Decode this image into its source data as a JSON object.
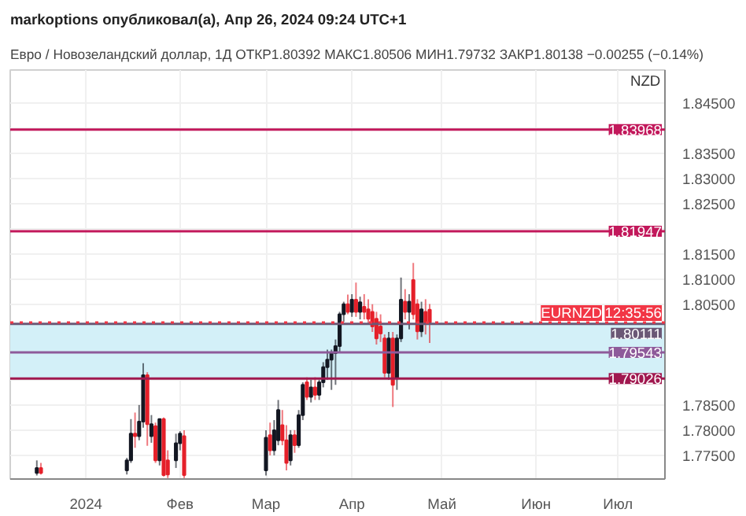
{
  "chart_data": {
    "type": "candlestick",
    "subtitle": "markoptions опубликовал(а), Апр 26, 2024 09:24 UTC+1",
    "title": "Евро / Новозеландский доллар, 1Д  ОТКР1.80392 МАКС1.80506 МИН1.79732 ЗАКР1.80138 −0.00255 (−0.14%)",
    "ylabel": "NZD",
    "categories": [
      null,
      null,
      null,
      null,
      null,
      null,
      null,
      null,
      null,
      null,
      null,
      null,
      null,
      null,
      null,
      null,
      null,
      null,
      "2024",
      null,
      null,
      null,
      null,
      null,
      null,
      null,
      null,
      null,
      null,
      null,
      null,
      null,
      null,
      null,
      null,
      null,
      null,
      null,
      null,
      null,
      null,
      "Фев",
      null,
      null,
      null,
      null,
      null,
      null,
      null,
      null,
      null,
      null,
      null,
      null,
      null,
      null,
      null,
      null,
      null,
      null,
      null,
      null,
      "Мар",
      null,
      null,
      null,
      null,
      null,
      null,
      null,
      null,
      null,
      null,
      null,
      null,
      null,
      null,
      null,
      null,
      null,
      null,
      null,
      null,
      "Апр",
      null,
      null,
      null,
      null,
      null,
      null,
      null,
      null,
      null,
      null,
      null,
      null,
      null,
      null,
      null,
      null,
      null,
      null,
      null,
      null,
      null,
      "Май",
      null,
      null,
      null,
      null,
      null,
      null,
      null,
      null,
      null,
      null,
      null,
      null,
      null,
      null,
      null,
      null,
      null,
      null,
      null,
      null,
      null,
      null,
      "Июн",
      null,
      null,
      null,
      null,
      null,
      null,
      null,
      null,
      null,
      null,
      null,
      null,
      null,
      null,
      null,
      null,
      null,
      null,
      null,
      "Июл",
      null,
      null,
      null,
      null,
      null,
      null,
      null,
      null,
      null,
      null,
      null
    ],
    "ohlc": [
      null,
      null,
      null,
      null,
      null,
      null,
      [
        1.7715,
        1.774,
        1.771,
        1.7725
      ],
      [
        1.7725,
        1.7735,
        1.7712,
        1.7715
      ],
      null,
      null,
      null,
      null,
      null,
      null,
      null,
      null,
      null,
      null,
      null,
      null,
      null,
      null,
      null,
      null,
      null,
      null,
      null,
      null,
      [
        1.772,
        1.7745,
        1.7712,
        1.774
      ],
      [
        1.774,
        1.7822,
        1.7735,
        1.7793
      ],
      [
        1.7793,
        1.7835,
        1.7765,
        1.7788
      ],
      [
        1.7788,
        1.785,
        1.778,
        1.7817
      ],
      [
        1.7817,
        1.7933,
        1.7805,
        1.7909
      ],
      [
        1.7909,
        1.7915,
        1.7769,
        1.7812
      ],
      [
        1.7788,
        1.783,
        1.7775,
        1.7812
      ],
      [
        1.7808,
        1.7815,
        1.7735,
        1.774
      ],
      [
        1.774,
        1.7822,
        1.773,
        1.7822
      ],
      [
        1.7822,
        1.7825,
        1.7708,
        1.7711
      ],
      [
        1.774,
        1.776,
        1.7705,
        1.7712
      ],
      null,
      [
        1.774,
        1.7793,
        1.7725,
        1.7774
      ],
      [
        1.7774,
        1.7798,
        1.776,
        1.7793
      ],
      [
        1.7788,
        1.78,
        1.7705,
        1.7711
      ],
      null,
      null,
      null,
      null,
      null,
      null,
      null,
      null,
      null,
      null,
      null,
      null,
      null,
      null,
      null,
      null,
      null,
      null,
      null,
      [
        1.772,
        1.78,
        1.771,
        1.7785
      ],
      [
        1.779,
        1.7815,
        1.775,
        1.776
      ],
      [
        1.776,
        1.782,
        1.775,
        1.78
      ],
      [
        1.778,
        1.786,
        1.777,
        1.784
      ],
      [
        1.781,
        1.784,
        1.777,
        1.778
      ],
      [
        1.778,
        1.781,
        1.772,
        1.7735
      ],
      [
        1.774,
        1.78,
        1.773,
        1.779
      ],
      [
        1.779,
        1.78,
        1.7755,
        1.777
      ],
      [
        1.777,
        1.784,
        1.7765,
        1.783
      ],
      [
        1.783,
        1.7895,
        1.782,
        1.789
      ],
      [
        1.7895,
        1.7905,
        1.786,
        1.7866
      ],
      [
        1.7866,
        1.79,
        1.7855,
        1.7885
      ],
      [
        1.7885,
        1.7905,
        1.786,
        1.787
      ],
      [
        1.787,
        1.79,
        1.786,
        1.7895
      ],
      [
        1.7895,
        1.7935,
        1.7885,
        1.7925
      ],
      [
        1.7925,
        1.796,
        1.79,
        1.794
      ],
      [
        1.794,
        1.796,
        1.788,
        1.7953
      ],
      [
        1.7953,
        1.798,
        1.789,
        1.7967
      ],
      [
        1.7967,
        1.8035,
        1.7955,
        1.803
      ],
      [
        1.803,
        1.8055,
        1.8015,
        1.805
      ],
      [
        1.805,
        1.8069,
        1.803,
        1.8035
      ],
      [
        1.8035,
        1.807,
        1.8025,
        1.8059
      ],
      [
        1.8059,
        1.8093,
        1.8025,
        1.8035
      ],
      [
        1.8035,
        1.8065,
        1.802,
        1.8054
      ],
      [
        1.8045,
        1.807,
        1.802,
        1.8035
      ],
      [
        1.804,
        1.806,
        1.801,
        1.8021
      ],
      [
        1.8035,
        1.805,
        1.7995,
        1.8006
      ],
      [
        1.8021,
        1.8035,
        1.797,
        1.7982
      ],
      [
        1.8006,
        1.803,
        1.7975,
        1.7992
      ],
      [
        1.7982,
        1.799,
        1.7905,
        1.7914
      ],
      [
        1.7914,
        1.7995,
        1.79,
        1.7982
      ],
      [
        1.7982,
        1.7995,
        1.7846,
        1.789
      ],
      [
        1.7904,
        1.799,
        1.788,
        1.7982
      ],
      [
        1.7982,
        1.8103,
        1.7975,
        1.8059
      ],
      [
        1.8055,
        1.808,
        1.802,
        1.8035
      ],
      [
        1.8035,
        1.807,
        1.8,
        1.8055
      ],
      [
        1.8098,
        1.8132,
        1.802,
        1.803
      ],
      [
        1.805,
        1.806,
        1.798,
        1.7996
      ],
      [
        1.7996,
        1.8055,
        1.7985,
        1.804
      ],
      [
        1.8035,
        1.806,
        1.799,
        1.8011
      ],
      [
        1.80392,
        1.80506,
        1.79732,
        1.80138
      ],
      null,
      null,
      null,
      null,
      null,
      null,
      null,
      null,
      null,
      null,
      null,
      null,
      null,
      null,
      null,
      null,
      null,
      null,
      null,
      null,
      null,
      null,
      null,
      null,
      null,
      null,
      null,
      null,
      null,
      null,
      null,
      null,
      null,
      null,
      null,
      null,
      null,
      null,
      null,
      null,
      null,
      null,
      null,
      null,
      null,
      null,
      null,
      null,
      null,
      null,
      null,
      null,
      null,
      null,
      null,
      null,
      null
    ],
    "colors": [
      null,
      null,
      null,
      null,
      null,
      null,
      "#131722",
      "#e5202a",
      null,
      null,
      null,
      null,
      null,
      null,
      null,
      null,
      null,
      null,
      null,
      null,
      null,
      null,
      null,
      null,
      null,
      null,
      null,
      null,
      "#131722",
      "#131722",
      "#e5202a",
      "#131722",
      "#131722",
      "#e5202a",
      "#131722",
      "#e5202a",
      "#131722",
      "#e5202a",
      "#e5202a",
      null,
      "#131722",
      "#131722",
      "#e5202a",
      null,
      null,
      null,
      null,
      null,
      null,
      null,
      null,
      null,
      null,
      null,
      null,
      null,
      null,
      null,
      null,
      null,
      null,
      null,
      "#131722",
      "#e5202a",
      "#131722",
      "#131722",
      "#e5202a",
      "#e5202a",
      "#131722",
      "#e5202a",
      "#131722",
      "#131722",
      "#e5202a",
      "#131722",
      "#e5202a",
      "#131722",
      "#131722",
      "#131722",
      "#131722",
      "#131722",
      "#131722",
      "#131722",
      "#e5202a",
      "#131722",
      "#e5202a",
      "#131722",
      "#e5202a",
      "#e5202a",
      "#e5202a",
      "#e5202a",
      "#e5202a",
      "#e5202a",
      "#131722",
      "#e5202a",
      "#131722",
      "#131722",
      "#e5202a",
      "#131722",
      "#e5202a",
      "#e5202a",
      "#131722",
      "#e5202a",
      "#e5202a",
      null,
      null,
      null,
      null,
      null,
      null,
      null,
      null,
      null,
      null,
      null,
      null,
      null,
      null,
      null,
      null,
      null,
      null,
      null,
      null,
      null,
      null,
      null,
      null,
      null,
      null,
      null,
      null,
      null,
      null,
      null,
      null,
      null,
      null,
      null,
      null,
      null,
      null,
      null,
      null,
      null,
      null,
      null,
      null,
      null,
      null,
      null,
      null,
      null,
      null,
      null,
      null,
      null,
      null,
      null,
      null,
      null
    ],
    "ylim": [
      1.7703,
      1.8515
    ],
    "yticks": [
      {
        "value": 1.775,
        "label": "1.77500"
      },
      {
        "value": 1.78,
        "label": "1.78000"
      },
      {
        "value": 1.785,
        "label": "1.78500"
      },
      {
        "value": 1.79,
        "label": null
      },
      {
        "value": 1.795,
        "label": null
      },
      {
        "value": 1.8,
        "label": null
      },
      {
        "value": 1.805,
        "label": "1.80500"
      },
      {
        "value": 1.81,
        "label": "1.81000"
      },
      {
        "value": 1.815,
        "label": "1.81500"
      },
      {
        "value": 1.82,
        "label": null
      },
      {
        "value": 1.825,
        "label": "1.82500"
      },
      {
        "value": 1.83,
        "label": "1.83000"
      },
      {
        "value": 1.835,
        "label": "1.83500"
      },
      {
        "value": 1.84,
        "label": null
      },
      {
        "value": 1.845,
        "label": "1.84500"
      }
    ],
    "grid": true,
    "bands": [
      {
        "axis": "y",
        "from": 1.79026,
        "to": 1.80111,
        "color": "#d3f0f8"
      }
    ],
    "ref_lines": [
      {
        "axis": "y",
        "value": 1.83968,
        "label": "1.83968",
        "color": "#c2185b"
      },
      {
        "axis": "y",
        "value": 1.81947,
        "label": "1.81947",
        "color": "#c2185b"
      },
      {
        "axis": "y",
        "value": 1.80111,
        "label": "1.80111",
        "color": "#6b5876"
      },
      {
        "axis": "y",
        "value": 1.79543,
        "label": "1.79543",
        "color": "#8e5a9a"
      },
      {
        "axis": "y",
        "value": 1.79026,
        "label": "1.79026",
        "color": "#a0184f"
      },
      {
        "axis": "y",
        "value": 1.80138,
        "label": "EURNZD",
        "color": "#f23645",
        "line_style": "dotted"
      }
    ],
    "annotations": [
      "12:35:56"
    ]
  }
}
